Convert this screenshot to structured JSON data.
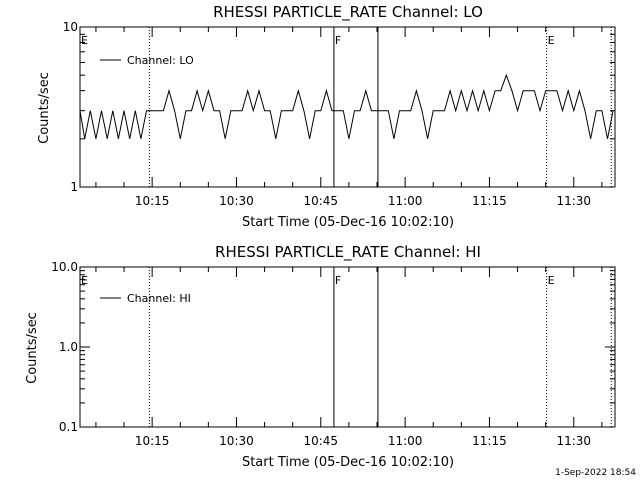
{
  "chart_data": [
    {
      "type": "line",
      "title": "RHESSI PARTICLE_RATE Channel: LO",
      "xlabel": "Start Time (05-Dec-16 10:02:10)",
      "ylabel": "Counts/sec",
      "yscale": "log",
      "ylim": [
        1,
        10
      ],
      "xlim": [
        "10:02:10",
        "11:37:20"
      ],
      "y_tick_labels": [
        "1",
        "10"
      ],
      "x_tick_labels": [
        "10:15",
        "10:30",
        "10:45",
        "11:00",
        "11:15",
        "11:30"
      ],
      "legend": {
        "label": "Channel: LO",
        "position": "top-left"
      },
      "markers": [
        {
          "label": "E",
          "time": "10:02:10",
          "style": "dotted"
        },
        {
          "label": "",
          "time": "10:14:30",
          "style": "dotted"
        },
        {
          "label": "F",
          "time": "10:47:20",
          "style": "solid"
        },
        {
          "label": "",
          "time": "10:55:10",
          "style": "solid"
        },
        {
          "label": "E",
          "time": "11:25:10",
          "style": "dotted"
        },
        {
          "label": "",
          "time": "11:36:40",
          "style": "dotted"
        }
      ],
      "series": [
        {
          "name": "Channel: LO",
          "x": [
            "10:02:10",
            "10:03:00",
            "10:04:00",
            "10:05:00",
            "10:06:00",
            "10:07:00",
            "10:08:00",
            "10:09:00",
            "10:10:00",
            "10:11:00",
            "10:12:00",
            "10:13:00",
            "10:14:00",
            "10:15:00",
            "10:16:00",
            "10:17:00",
            "10:18:00",
            "10:19:00",
            "10:20:00",
            "10:21:00",
            "10:22:00",
            "10:23:00",
            "10:24:00",
            "10:25:00",
            "10:26:00",
            "10:27:00",
            "10:28:00",
            "10:29:00",
            "10:30:00",
            "10:31:00",
            "10:32:00",
            "10:33:00",
            "10:34:00",
            "10:35:00",
            "10:36:00",
            "10:37:00",
            "10:38:00",
            "10:39:00",
            "10:40:00",
            "10:41:00",
            "10:42:00",
            "10:43:00",
            "10:44:00",
            "10:45:00",
            "10:46:00",
            "10:47:00",
            "10:48:00",
            "10:49:00",
            "10:50:00",
            "10:51:00",
            "10:52:00",
            "10:53:00",
            "10:54:00",
            "10:55:00",
            "10:56:00",
            "10:57:00",
            "10:58:00",
            "10:59:00",
            "11:00:00",
            "11:01:00",
            "11:02:00",
            "11:03:00",
            "11:04:00",
            "11:05:00",
            "11:06:00",
            "11:07:00",
            "11:08:00",
            "11:09:00",
            "11:10:00",
            "11:11:00",
            "11:12:00",
            "11:13:00",
            "11:14:00",
            "11:15:00",
            "11:16:00",
            "11:17:00",
            "11:18:00",
            "11:19:00",
            "11:20:00",
            "11:21:00",
            "11:22:00",
            "11:23:00",
            "11:24:00",
            "11:25:00",
            "11:26:00",
            "11:27:00",
            "11:28:00",
            "11:29:00",
            "11:30:00",
            "11:31:00",
            "11:32:00",
            "11:33:00",
            "11:34:00",
            "11:35:00",
            "11:36:00",
            "11:37:00"
          ],
          "y": [
            3,
            2,
            3,
            2,
            3,
            2,
            3,
            2,
            3,
            2,
            3,
            2,
            3,
            3,
            3,
            3,
            4,
            3,
            2,
            3,
            3,
            4,
            3,
            4,
            3,
            3,
            2,
            3,
            3,
            3,
            4,
            3,
            4,
            3,
            3,
            2,
            3,
            3,
            3,
            4,
            3,
            2,
            3,
            3,
            4,
            3,
            3,
            3,
            2,
            3,
            3,
            4,
            3,
            3,
            3,
            3,
            2,
            3,
            3,
            3,
            4,
            3,
            2,
            3,
            3,
            3,
            4,
            3,
            4,
            3,
            4,
            3,
            4,
            3,
            4,
            4,
            5,
            4,
            3,
            4,
            4,
            4,
            3,
            4,
            4,
            4,
            3,
            4,
            3,
            4,
            3,
            2,
            3,
            3,
            2,
            3
          ]
        }
      ]
    },
    {
      "type": "line",
      "title": "RHESSI PARTICLE_RATE Channel: HI",
      "xlabel": "Start Time (05-Dec-16 10:02:10)",
      "ylabel": "Counts/sec",
      "yscale": "log",
      "ylim": [
        0.1,
        10
      ],
      "xlim": [
        "10:02:10",
        "11:37:20"
      ],
      "y_tick_labels": [
        "0.1",
        "1.0",
        "10.0"
      ],
      "x_tick_labels": [
        "10:15",
        "10:30",
        "10:45",
        "11:00",
        "11:15",
        "11:30"
      ],
      "legend": {
        "label": "Channel: HI",
        "position": "top-left"
      },
      "markers": [
        {
          "label": "E",
          "time": "10:02:10",
          "style": "dotted"
        },
        {
          "label": "",
          "time": "10:14:30",
          "style": "dotted"
        },
        {
          "label": "F",
          "time": "10:47:20",
          "style": "solid"
        },
        {
          "label": "",
          "time": "10:55:10",
          "style": "solid"
        },
        {
          "label": "E",
          "time": "11:25:10",
          "style": "dotted"
        },
        {
          "label": "",
          "time": "11:36:40",
          "style": "dotted"
        }
      ],
      "series": [
        {
          "name": "Channel: HI",
          "x": [],
          "y": []
        }
      ]
    }
  ],
  "footer": {
    "timestamp": "1-Sep-2022 18:54"
  }
}
